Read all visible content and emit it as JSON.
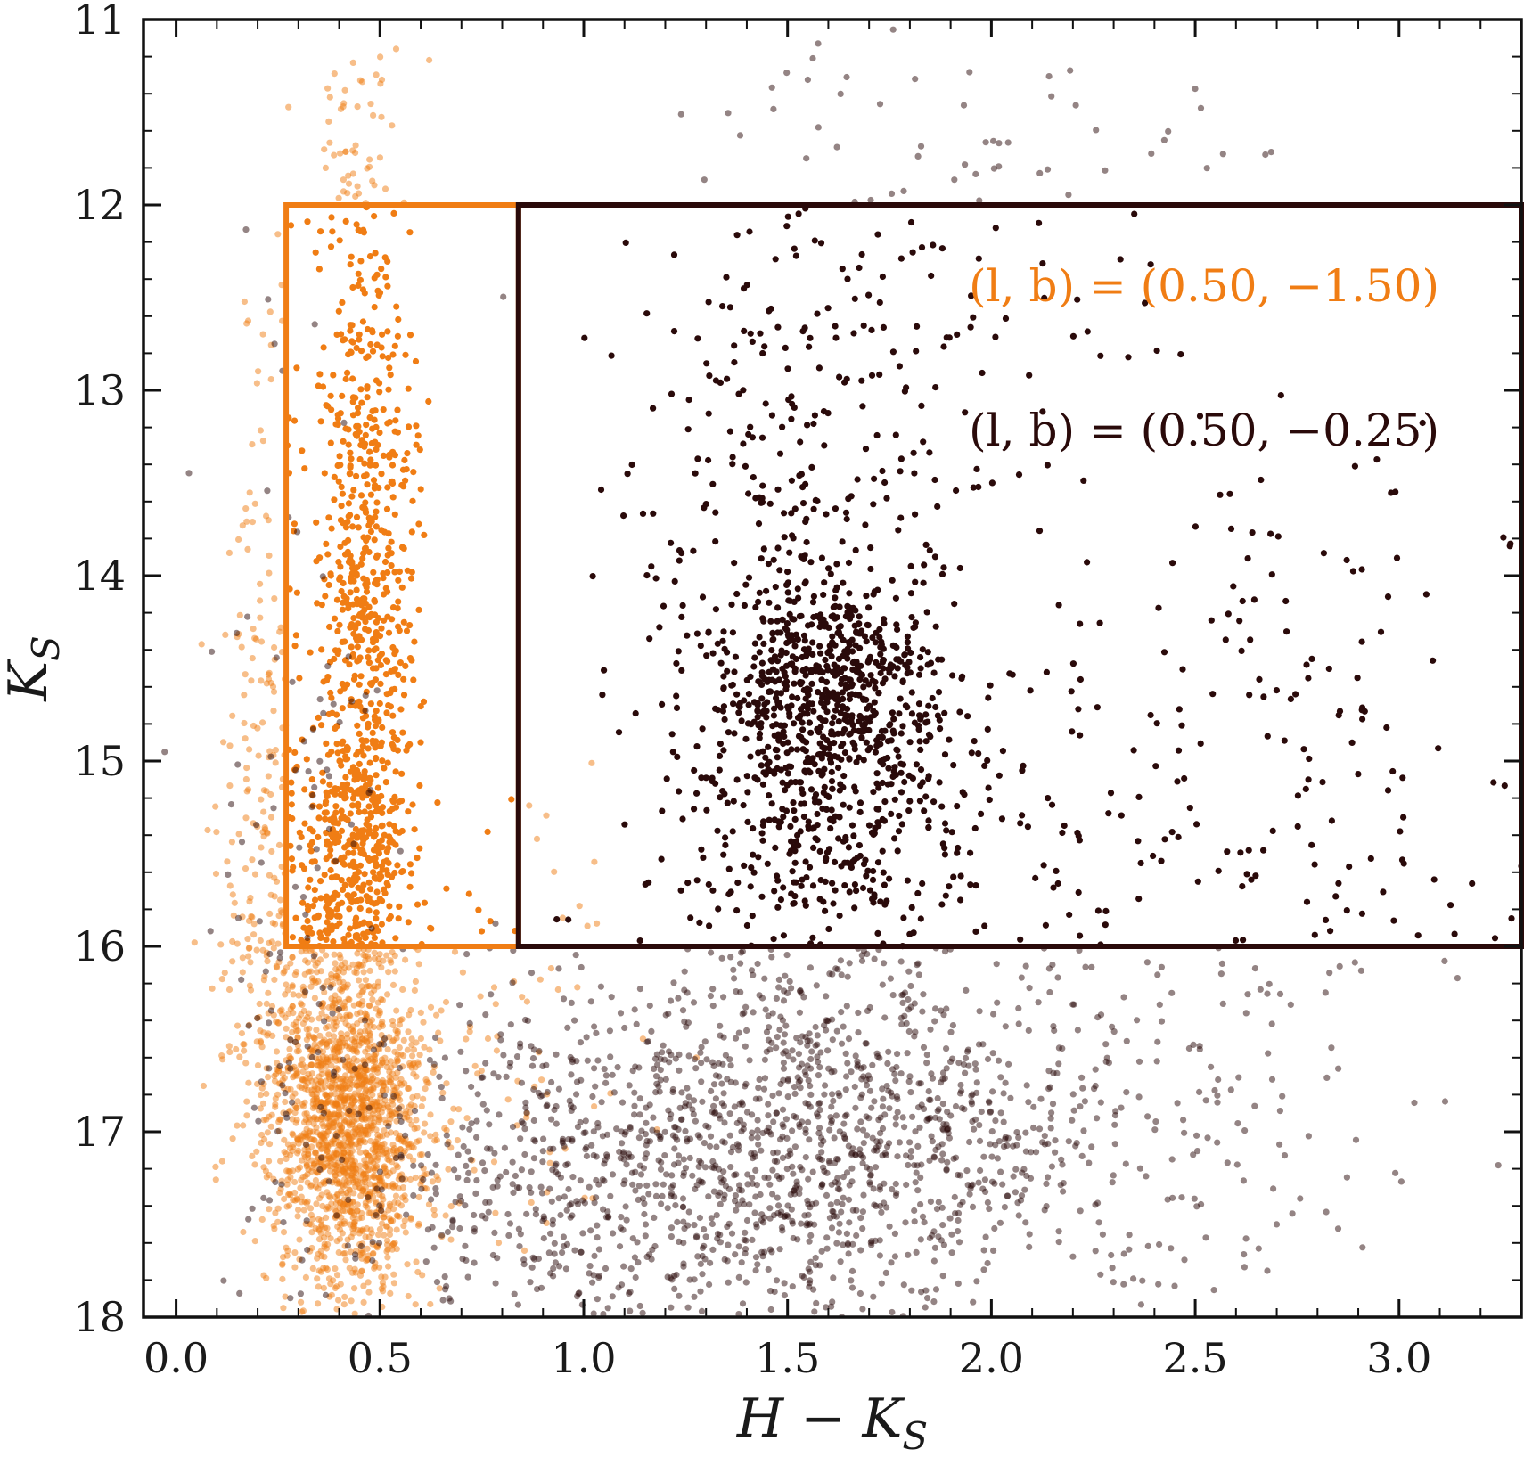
{
  "chart_data": {
    "type": "scatter",
    "title": "",
    "xlabel": "H − K_S",
    "ylabel": "K_S",
    "xlabel_parts": {
      "main": "H − K",
      "sub": "S"
    },
    "ylabel_parts": {
      "main": "K",
      "sub": "S"
    },
    "xlim": [
      -0.08,
      3.3
    ],
    "ylim": [
      18,
      11
    ],
    "y_inverted": true,
    "x_ticks": [
      0.0,
      0.5,
      1.0,
      1.5,
      2.0,
      2.5,
      3.0
    ],
    "x_tick_labels": [
      "0.0",
      "0.5",
      "1.0",
      "1.5",
      "2.0",
      "2.5",
      "3.0"
    ],
    "y_ticks": [
      11,
      12,
      13,
      14,
      15,
      16,
      17,
      18
    ],
    "y_tick_labels": [
      "11",
      "12",
      "13",
      "14",
      "15",
      "16",
      "17",
      "18"
    ],
    "grid": false,
    "series": [
      {
        "color": "#f07d14",
        "label_text": "(l, b) = (0.50, −1.50)",
        "selection_box": {
          "x": [
            0.27,
            0.84
          ],
          "y": [
            12,
            16
          ]
        },
        "clumps": [
          {
            "cx": 0.43,
            "cy": 17.0,
            "sx": 0.09,
            "sy": 0.42,
            "n": 1500
          },
          {
            "cx": 0.33,
            "cy": 16.4,
            "sx": 0.1,
            "sy": 0.5,
            "n": 350
          },
          {
            "cx": 0.46,
            "cy": 14.0,
            "sx": 0.06,
            "sy": 1.0,
            "n": 650
          },
          {
            "cx": 0.44,
            "cy": 15.5,
            "sx": 0.06,
            "sy": 0.35,
            "n": 300
          },
          {
            "cx": 0.22,
            "cy": 15.0,
            "sx": 0.05,
            "sy": 1.3,
            "n": 180
          },
          {
            "cx": 0.45,
            "cy": 11.7,
            "sx": 0.05,
            "sy": 0.5,
            "n": 60
          },
          {
            "cx": 0.7,
            "cy": 16.7,
            "sx": 0.2,
            "sy": 0.7,
            "n": 120
          }
        ]
      },
      {
        "color": "#2a0a0a",
        "label_text": "(l, b) = (0.50, −0.25)",
        "selection_box": {
          "x": [
            0.84,
            3.3
          ],
          "y": [
            12,
            16
          ]
        },
        "clumps": [
          {
            "cx": 1.6,
            "cy": 14.6,
            "sx": 0.12,
            "sy": 0.3,
            "n": 450
          },
          {
            "cx": 1.6,
            "cy": 15.2,
            "sx": 0.2,
            "sy": 0.55,
            "n": 550
          },
          {
            "cx": 1.55,
            "cy": 13.6,
            "sx": 0.22,
            "sy": 0.8,
            "n": 300
          },
          {
            "cx": 1.6,
            "cy": 17.1,
            "sx": 0.4,
            "sy": 0.45,
            "n": 1200
          },
          {
            "cx": 1.0,
            "cy": 17.2,
            "sx": 0.35,
            "sy": 0.5,
            "n": 500
          },
          {
            "cx": 2.6,
            "cy": 14.9,
            "sx": 0.45,
            "sy": 1.0,
            "n": 200
          },
          {
            "cx": 2.3,
            "cy": 16.6,
            "sx": 0.4,
            "sy": 0.7,
            "n": 150
          },
          {
            "cx": 1.9,
            "cy": 12.0,
            "sx": 0.35,
            "sy": 0.6,
            "n": 100
          },
          {
            "cx": 0.3,
            "cy": 15.5,
            "sx": 0.1,
            "sy": 1.4,
            "n": 120
          }
        ]
      }
    ]
  }
}
